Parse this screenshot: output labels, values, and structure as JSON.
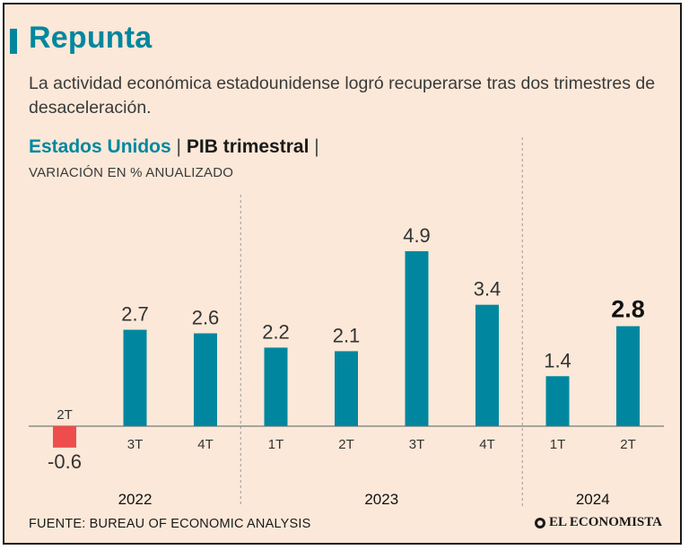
{
  "header": {
    "title": "Repunta",
    "subtitle": "La actividad económica estadounidense logró recuperarse tras dos trimestres de desaceleración."
  },
  "chart_header": {
    "country": "Estados Unidos",
    "separator": "|",
    "metric": "PIB trimestral",
    "unit": "VARIACIÓN EN % ANUALIZADO"
  },
  "footer": {
    "source": "FUENTE: BUREAU OF ECONOMIC ANALYSIS",
    "logo": "EL ECONOMISTA"
  },
  "colors": {
    "accent": "#00879f",
    "negative": "#ee4d4d",
    "text": "#1a1a1a",
    "muted": "#3a3a3a"
  },
  "chart_data": {
    "type": "bar",
    "title": "Estados Unidos | PIB trimestral",
    "ylabel": "VARIACIÓN EN % ANUALIZADO",
    "categories": [
      "2T",
      "3T",
      "4T",
      "1T",
      "2T",
      "3T",
      "4T",
      "1T",
      "2T"
    ],
    "values": [
      -0.6,
      2.7,
      2.6,
      2.2,
      2.1,
      4.9,
      3.4,
      1.4,
      2.8
    ],
    "value_labels": [
      "-0.6",
      "2.7",
      "2.6",
      "2.2",
      "2.1",
      "4.9",
      "3.4",
      "1.4",
      "2.8"
    ],
    "highlight_last": true,
    "years": [
      {
        "label": "2022",
        "start": 0,
        "end": 2
      },
      {
        "label": "2023",
        "start": 3,
        "end": 6
      },
      {
        "label": "2024",
        "start": 7,
        "end": 8
      }
    ],
    "ylim": [
      -0.6,
      5.4
    ],
    "grid": false
  }
}
